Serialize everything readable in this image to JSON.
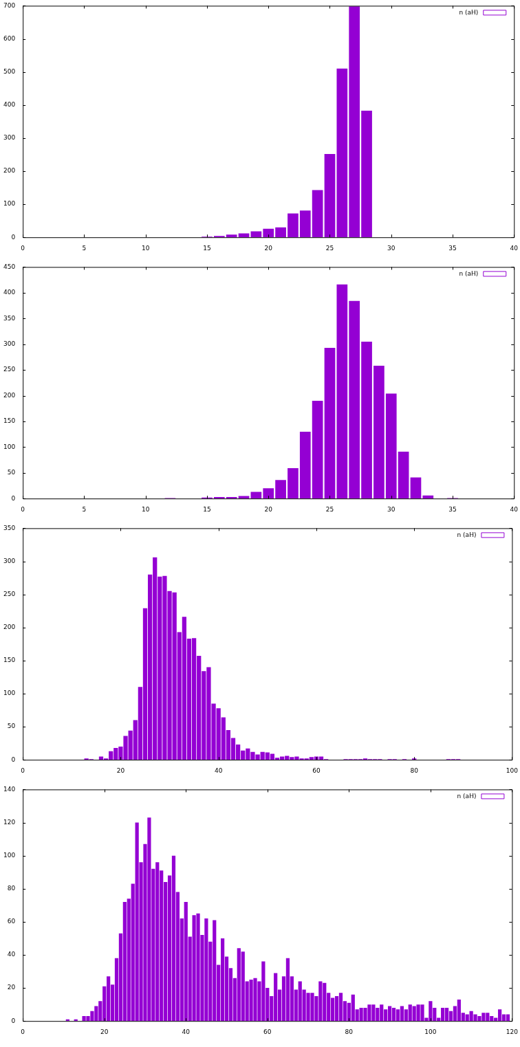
{
  "chart_data": [
    {
      "type": "histogram",
      "bins": [
        14.5,
        15.5,
        16.5,
        17.5,
        18.5,
        19.5,
        20.5,
        21.5,
        22.5,
        23.5,
        24.5,
        25.5,
        26.5,
        27.5,
        28.5
      ],
      "series": [
        {
          "name": "n (aH)",
          "color": "#9400d3",
          "values": [
            2,
            4,
            8,
            12,
            18,
            26,
            30,
            72,
            81,
            143,
            252,
            510,
            698,
            383
          ]
        }
      ],
      "xlim": [
        0,
        40
      ],
      "xticks": [
        0,
        5,
        10,
        15,
        20,
        25,
        30,
        35,
        40
      ],
      "ylim": [
        0,
        700
      ],
      "yticks": [
        0,
        100,
        200,
        300,
        400,
        500,
        600,
        700
      ],
      "legend": "top right"
    },
    {
      "type": "histogram",
      "bins": [
        11.5,
        12.5,
        13.5,
        14.5,
        15.5,
        16.5,
        17.5,
        18.5,
        19.5,
        20.5,
        21.5,
        22.5,
        23.5,
        24.5,
        25.5,
        26.5,
        27.5,
        28.5,
        29.5,
        30.5,
        31.5,
        32.5,
        33.5,
        34.5,
        35.5
      ],
      "series": [
        {
          "name": "n (aH)",
          "color": "#9400d3",
          "values": [
            1,
            0,
            0,
            2,
            3,
            3,
            5,
            13,
            20,
            36,
            59,
            130,
            190,
            293,
            416,
            384,
            305,
            258,
            204,
            91,
            41,
            6,
            0,
            1
          ]
        }
      ],
      "xlim": [
        0,
        40
      ],
      "xticks": [
        0,
        5,
        10,
        15,
        20,
        25,
        30,
        35,
        40
      ],
      "ylim": [
        0,
        450
      ],
      "yticks": [
        0,
        50,
        100,
        150,
        200,
        250,
        300,
        350,
        400,
        450
      ],
      "legend": "top right"
    },
    {
      "type": "histogram",
      "bins": [
        12.5,
        13.5,
        14.5,
        15.5,
        16.5,
        17.5,
        18.5,
        19.5,
        20.5,
        21.5,
        22.5,
        23.5,
        24.5,
        25.5,
        26.5,
        27.5,
        28.5,
        29.5,
        30.5,
        31.5,
        32.5,
        33.5,
        34.5,
        35.5,
        36.5,
        37.5,
        38.5,
        39.5,
        40.5,
        41.5,
        42.5,
        43.5,
        44.5,
        45.5,
        46.5,
        47.5,
        48.5,
        49.5,
        50.5,
        51.5,
        52.5,
        53.5,
        54.5,
        55.5,
        56.5,
        57.5,
        58.5,
        59.5,
        60.5,
        61.5,
        62.5,
        63.5,
        64.5,
        65.5,
        66.5,
        67.5,
        68.5,
        69.5,
        70.5,
        71.5,
        72.5,
        73.5,
        74.5,
        75.5,
        76.5,
        77.5,
        78.5,
        79.5,
        80.5,
        81.5,
        82.5,
        83.5,
        84.5,
        85.5,
        86.5,
        87.5,
        88.5,
        89.5
      ],
      "series": [
        {
          "name": "n (aH)",
          "color": "#9400d3",
          "values": [
            2,
            1,
            0,
            5,
            2,
            13,
            18,
            20,
            36,
            44,
            60,
            110,
            229,
            280,
            306,
            277,
            278,
            255,
            253,
            193,
            216,
            183,
            184,
            157,
            134,
            140,
            85,
            78,
            64,
            45,
            33,
            23,
            14,
            17,
            12,
            8,
            12,
            11,
            9,
            3,
            5,
            6,
            4,
            5,
            2,
            2,
            4,
            5,
            5,
            1,
            0,
            0,
            0,
            1,
            1,
            1,
            1,
            2,
            1,
            1,
            1,
            0,
            1,
            1,
            0,
            1,
            0,
            2,
            0,
            0,
            0,
            0,
            0,
            0,
            1,
            1,
            1
          ]
        }
      ],
      "xlim": [
        0,
        100
      ],
      "xticks": [
        0,
        20,
        40,
        60,
        80,
        100
      ],
      "ylim": [
        0,
        350
      ],
      "yticks": [
        0,
        50,
        100,
        150,
        200,
        250,
        300,
        350
      ],
      "legend": "top right"
    },
    {
      "type": "histogram",
      "bins": [
        10.5,
        11.5,
        12.5,
        13.5,
        14.5,
        15.5,
        16.5,
        17.5,
        18.5,
        19.5,
        20.5,
        21.5,
        22.5,
        23.5,
        24.5,
        25.5,
        26.5,
        27.5,
        28.5,
        29.5,
        30.5,
        31.5,
        32.5,
        33.5,
        34.5,
        35.5,
        36.5,
        37.5,
        38.5,
        39.5,
        40.5,
        41.5,
        42.5,
        43.5,
        44.5,
        45.5,
        46.5,
        47.5,
        48.5,
        49.5,
        50.5,
        51.5,
        52.5,
        53.5,
        54.5,
        55.5,
        56.5,
        57.5,
        58.5,
        59.5,
        60.5,
        61.5,
        62.5,
        63.5,
        64.5,
        65.5,
        66.5,
        67.5,
        68.5,
        69.5,
        70.5,
        71.5,
        72.5,
        73.5,
        74.5,
        75.5,
        76.5,
        77.5,
        78.5,
        79.5,
        80.5,
        81.5,
        82.5,
        83.5,
        84.5,
        85.5,
        86.5,
        87.5,
        88.5,
        89.5,
        90.5,
        91.5,
        92.5,
        93.5,
        94.5,
        95.5,
        96.5,
        97.5,
        98.5,
        99.5,
        100.5,
        101.5,
        102.5,
        103.5,
        104.5,
        105.5,
        106.5,
        107.5,
        108.5,
        109.5,
        110.5,
        111.5,
        112.5,
        113.5,
        114.5,
        115.5,
        116.5,
        117.5,
        118.5,
        119.5
      ],
      "series": [
        {
          "name": "n (aH)",
          "color": "#9400d3",
          "values": [
            1,
            0,
            1,
            0,
            3,
            3,
            6,
            9,
            12,
            21,
            27,
            22,
            38,
            53,
            72,
            74,
            83,
            120,
            96,
            107,
            123,
            92,
            96,
            91,
            84,
            88,
            100,
            78,
            62,
            72,
            51,
            64,
            65,
            52,
            62,
            48,
            61,
            34,
            50,
            39,
            32,
            26,
            44,
            42,
            24,
            25,
            26,
            24,
            36,
            20,
            15,
            29,
            19,
            27,
            38,
            27,
            19,
            24,
            19,
            17,
            17,
            15,
            24,
            23,
            17,
            14,
            15,
            17,
            12,
            11,
            16,
            7,
            8,
            8,
            10,
            10,
            8,
            10,
            7,
            9,
            8,
            7,
            9,
            7,
            10,
            9,
            10,
            10,
            2,
            12,
            8,
            2,
            8,
            8,
            6,
            9,
            13,
            5,
            4,
            6,
            4,
            3,
            5,
            5,
            3,
            2,
            7,
            4,
            4
          ]
        }
      ],
      "xlim": [
        0,
        120
      ],
      "xticks": [
        0,
        20,
        40,
        60,
        80,
        100,
        120
      ],
      "ylim": [
        0,
        140
      ],
      "yticks": [
        0,
        20,
        40,
        60,
        80,
        100,
        120,
        140
      ],
      "legend": "top right"
    }
  ]
}
